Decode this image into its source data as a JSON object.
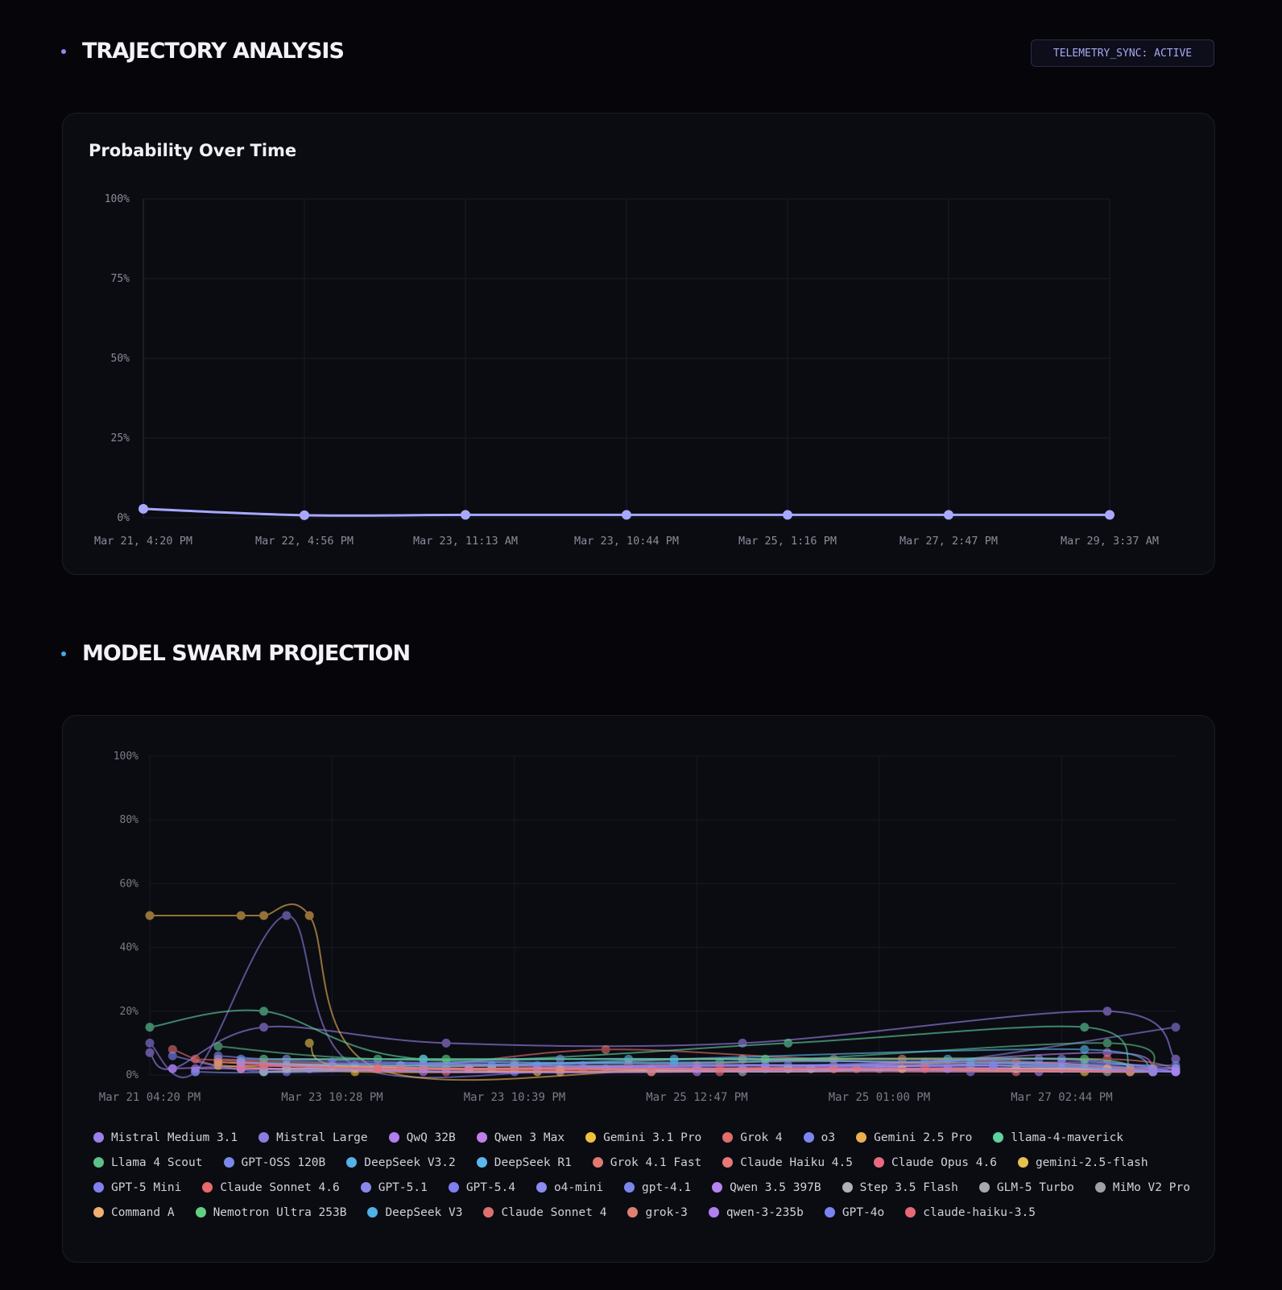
{
  "sections": {
    "trajectory": {
      "title": "TRAJECTORY ANALYSIS",
      "dot_color": "#8b8bf0"
    },
    "swarm": {
      "title": "MODEL SWARM PROJECTION",
      "dot_color": "#4aa8e8"
    }
  },
  "badge": {
    "label": "TELEMETRY_SYNC: ACTIVE"
  },
  "probability_card": {
    "title": "Probability Over Time"
  },
  "chart_data": [
    {
      "type": "line",
      "title": "Probability Over Time",
      "ylim": [
        0,
        100
      ],
      "yticks": [
        "100%",
        "75%",
        "50%",
        "25%",
        "0%"
      ],
      "categories": [
        "Mar 21, 4:20 PM",
        "Mar 22, 4:56 PM",
        "Mar 23, 11:13 AM",
        "Mar 23, 10:44 PM",
        "Mar 25, 1:16 PM",
        "Mar 27, 2:47 PM",
        "Mar 29, 3:37 AM"
      ],
      "series": [
        {
          "name": "Probability",
          "color": "#a8a8ff",
          "values": [
            2.8,
            0.8,
            0.9,
            0.9,
            0.9,
            0.9,
            0.9
          ]
        }
      ]
    },
    {
      "type": "line",
      "title": "",
      "ylim": [
        0,
        100
      ],
      "yticks": [
        "100%",
        "80%",
        "60%",
        "40%",
        "20%",
        "0%"
      ],
      "x_ticks": [
        "Mar 21 04:20 PM",
        "Mar 23 10:28 PM",
        "Mar 23 10:39 PM",
        "Mar 25 12:47 PM",
        "Mar 25 01:00 PM",
        "Mar 27 02:44 PM"
      ],
      "x_count": 46,
      "series": [
        {
          "name": "Mistral Medium 3.1",
          "color": "#9b7fea",
          "values": [
            [
              0,
              7
            ],
            [
              1,
              2
            ],
            [
              5,
              15
            ],
            [
              13,
              10
            ],
            [
              26,
              10
            ],
            [
              42,
              20
            ],
            [
              45,
              5
            ]
          ]
        },
        {
          "name": "Mistral Large",
          "color": "#8a7ce0",
          "values": [
            [
              0,
              10
            ],
            [
              2,
              1
            ],
            [
              6,
              50
            ],
            [
              9,
              3
            ],
            [
              20,
              2
            ],
            [
              32,
              2
            ],
            [
              45,
              15
            ]
          ]
        },
        {
          "name": "QwQ 32B",
          "color": "#b07ef0",
          "values": [
            [
              1,
              2
            ],
            [
              6,
              3
            ],
            [
              14,
              2
            ],
            [
              26,
              2
            ],
            [
              39,
              1
            ],
            [
              45,
              2
            ]
          ]
        },
        {
          "name": "Qwen 3 Max",
          "color": "#c07ee8",
          "values": [
            [
              2,
              2
            ],
            [
              7,
              2
            ],
            [
              16,
              2
            ],
            [
              28,
              2
            ],
            [
              42,
              7
            ],
            [
              44,
              1
            ]
          ]
        },
        {
          "name": "Gemini 3.1 Pro",
          "color": "#f0c040",
          "values": [
            [
              3,
              3
            ],
            [
              9,
              1
            ],
            [
              17,
              1
            ],
            [
              30,
              2
            ],
            [
              41,
              1
            ],
            [
              44,
              1
            ]
          ]
        },
        {
          "name": "Grok 4",
          "color": "#e06e6a",
          "values": [
            [
              1,
              8
            ],
            [
              4,
              2
            ],
            [
              12,
              3
            ],
            [
              20,
              8
            ],
            [
              30,
              5
            ],
            [
              42,
              5
            ],
            [
              45,
              2
            ]
          ]
        },
        {
          "name": "o3",
          "color": "#7d86f0",
          "values": [
            [
              1,
              6
            ],
            [
              5,
              1
            ],
            [
              13,
              2
            ],
            [
              22,
              2
            ],
            [
              36,
              1
            ],
            [
              45,
              1
            ]
          ]
        },
        {
          "name": "Gemini 2.5 Pro",
          "color": "#e8b050",
          "values": [
            [
              0,
              50
            ],
            [
              4,
              50
            ],
            [
              5,
              50
            ],
            [
              7,
              50
            ],
            [
              10,
              2
            ],
            [
              24,
              2
            ],
            [
              38,
              2
            ],
            [
              44,
              1
            ]
          ]
        },
        {
          "name": "llama-4-maverick",
          "color": "#5fd0a0",
          "values": [
            [
              0,
              15
            ],
            [
              5,
              20
            ],
            [
              12,
              5
            ],
            [
              28,
              10
            ],
            [
              41,
              15
            ],
            [
              43,
              2
            ]
          ]
        },
        {
          "name": "Llama 4 Scout",
          "color": "#5cc08a",
          "values": [
            [
              3,
              9
            ],
            [
              10,
              5
            ],
            [
              25,
              4
            ],
            [
              42,
              10
            ],
            [
              44,
              1
            ]
          ]
        },
        {
          "name": "GPT-OSS 120B",
          "color": "#7a88ea",
          "values": [
            [
              2,
              1
            ],
            [
              6,
              1
            ],
            [
              18,
              5
            ],
            [
              34,
              4
            ],
            [
              45,
              3
            ]
          ]
        },
        {
          "name": "DeepSeek V3.2",
          "color": "#58b0e8",
          "values": [
            [
              4,
              5
            ],
            [
              12,
              5
            ],
            [
              21,
              5
            ],
            [
              35,
              5
            ],
            [
              44,
              2
            ]
          ]
        },
        {
          "name": "DeepSeek R1",
          "color": "#5ab8ec",
          "values": [
            [
              5,
              1
            ],
            [
              15,
              3
            ],
            [
              23,
              5
            ],
            [
              41,
              8
            ],
            [
              44,
              1
            ]
          ]
        },
        {
          "name": "Grok 4.1 Fast",
          "color": "#e07a70",
          "values": [
            [
              3,
              5
            ],
            [
              11,
              3
            ],
            [
              21,
              3
            ],
            [
              33,
              5
            ],
            [
              43,
              2
            ]
          ]
        },
        {
          "name": "Claude Haiku 4.5",
          "color": "#e87878",
          "values": [
            [
              4,
              3
            ],
            [
              14,
              2
            ],
            [
              24,
              3
            ],
            [
              36,
              3
            ],
            [
              44,
              2
            ]
          ]
        },
        {
          "name": "Claude Opus 4.6",
          "color": "#e86a80",
          "values": [
            [
              4,
              2
            ],
            [
              13,
              1
            ],
            [
              25,
              1
            ],
            [
              38,
              1
            ],
            [
              44,
              1
            ]
          ]
        },
        {
          "name": "gemini-2.5-flash",
          "color": "#e8c050",
          "values": [
            [
              7,
              10
            ],
            [
              9,
              2
            ],
            [
              22,
              1
            ],
            [
              29,
              2
            ],
            [
              43,
              1
            ]
          ]
        },
        {
          "name": "GPT-5 Mini",
          "color": "#8080f0",
          "values": [
            [
              5,
              2
            ],
            [
              15,
              2
            ],
            [
              27,
              2
            ],
            [
              37,
              3
            ],
            [
              45,
              1
            ]
          ]
        },
        {
          "name": "Claude Sonnet 4.6",
          "color": "#e86a6a",
          "values": [
            [
              2,
              5
            ],
            [
              12,
              2
            ],
            [
              24,
              2
            ],
            [
              38,
              4
            ],
            [
              44,
              1
            ]
          ]
        },
        {
          "name": "GPT-5.1",
          "color": "#8888ec",
          "values": [
            [
              6,
              2
            ],
            [
              16,
              1
            ],
            [
              26,
              2
            ],
            [
              39,
              5
            ],
            [
              45,
              1
            ]
          ]
        },
        {
          "name": "GPT-5.4",
          "color": "#7f7ff0",
          "values": [
            [
              7,
              2
            ],
            [
              17,
              2
            ],
            [
              28,
              3
            ],
            [
              40,
              5
            ],
            [
              45,
              1
            ]
          ]
        },
        {
          "name": "o4-mini",
          "color": "#8a8cf0",
          "values": [
            [
              6,
              5
            ],
            [
              17,
              3
            ],
            [
              29,
              2
            ],
            [
              40,
              4
            ],
            [
              45,
              2
            ]
          ]
        },
        {
          "name": "gpt-4.1",
          "color": "#7c86ea",
          "values": [
            [
              5,
              3
            ],
            [
              16,
              4
            ],
            [
              30,
              3
            ],
            [
              41,
              3
            ],
            [
              44,
              1
            ]
          ]
        },
        {
          "name": "Qwen 3.5 397B",
          "color": "#b884f0",
          "values": [
            [
              4,
              2
            ],
            [
              14,
              2
            ],
            [
              27,
              3
            ],
            [
              40,
              2
            ],
            [
              45,
              1
            ]
          ]
        },
        {
          "name": "Step 3.5 Flash",
          "color": "#b0b0b8",
          "values": [
            [
              6,
              2
            ],
            [
              18,
              2
            ],
            [
              26,
              1
            ],
            [
              38,
              2
            ],
            [
              44,
              1
            ]
          ]
        },
        {
          "name": "GLM-5 Turbo",
          "color": "#a8a8b0",
          "values": [
            [
              5,
              1
            ],
            [
              15,
              2
            ],
            [
              28,
              2
            ],
            [
              42,
              1
            ],
            [
              44,
              1
            ]
          ]
        },
        {
          "name": "MiMo V2 Pro",
          "color": "#a0a0a8",
          "values": [
            [
              6,
              3
            ],
            [
              16,
              3
            ],
            [
              26,
              5
            ],
            [
              41,
              2
            ],
            [
              44,
              1
            ]
          ]
        },
        {
          "name": "Command A",
          "color": "#f0b070",
          "values": [
            [
              3,
              4
            ],
            [
              8,
              3
            ],
            [
              18,
              1
            ],
            [
              33,
              2
            ],
            [
              42,
              2
            ]
          ]
        },
        {
          "name": "Nemotron Ultra 253B",
          "color": "#60d080",
          "values": [
            [
              5,
              5
            ],
            [
              13,
              5
            ],
            [
              27,
              5
            ],
            [
              41,
              5
            ],
            [
              43,
              1
            ]
          ]
        },
        {
          "name": "DeepSeek V3",
          "color": "#50b0e8",
          "values": [
            [
              4,
              4
            ],
            [
              11,
              3
            ],
            [
              23,
              4
            ],
            [
              36,
              4
            ],
            [
              44,
              1
            ]
          ]
        },
        {
          "name": "Claude Sonnet 4",
          "color": "#e07070",
          "values": [
            [
              4,
              3
            ],
            [
              11,
              2
            ],
            [
              22,
              1
            ],
            [
              30,
              2
            ],
            [
              44,
              1
            ]
          ]
        },
        {
          "name": "grok-3",
          "color": "#e08070",
          "values": [
            [
              3,
              4
            ],
            [
              10,
              2
            ],
            [
              19,
              2
            ],
            [
              31,
              2
            ],
            [
              44,
              1
            ]
          ]
        },
        {
          "name": "qwen-3-235b",
          "color": "#b080f0",
          "values": [
            [
              4,
              4
            ],
            [
              12,
              1
            ],
            [
              24,
              1
            ],
            [
              35,
              2
            ],
            [
              44,
              1
            ]
          ]
        },
        {
          "name": "GPT-4o",
          "color": "#7b85f0",
          "values": [
            [
              3,
              6
            ],
            [
              8,
              4
            ],
            [
              19,
              3
            ],
            [
              37,
              3
            ],
            [
              44,
              1
            ]
          ]
        },
        {
          "name": "claude-haiku-3.5",
          "color": "#e86878",
          "values": [
            [
              5,
              3
            ],
            [
              10,
              2
            ],
            [
              25,
              2
            ],
            [
              34,
              2
            ],
            [
              43,
              1
            ]
          ]
        }
      ]
    }
  ]
}
